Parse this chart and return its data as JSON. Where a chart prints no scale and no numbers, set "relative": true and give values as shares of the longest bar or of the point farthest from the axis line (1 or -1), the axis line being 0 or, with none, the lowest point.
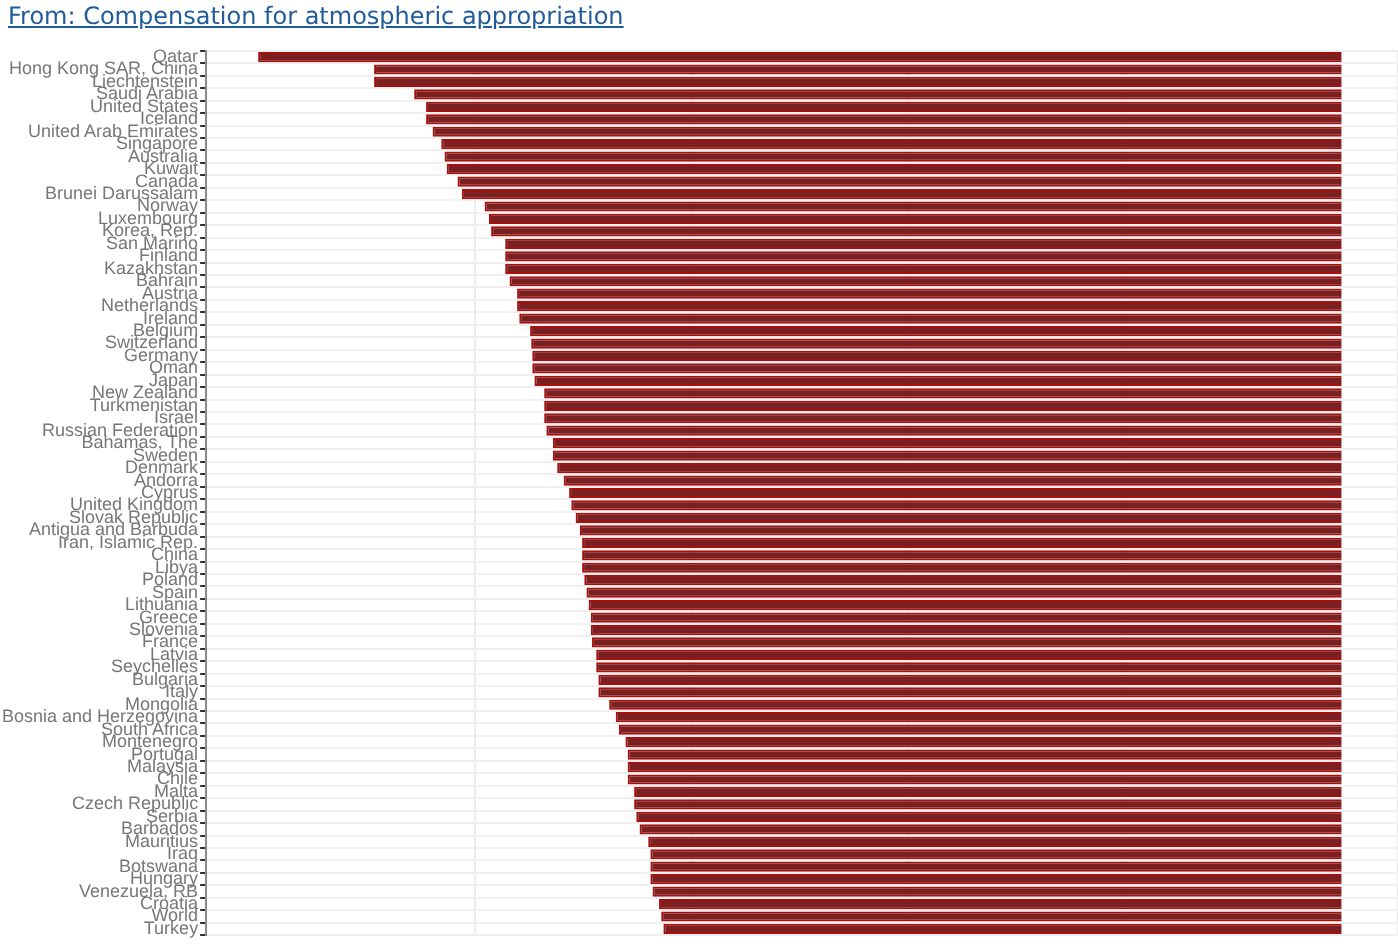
{
  "chart_data": {
    "type": "bar",
    "orientation": "horizontal",
    "relative": true,
    "title": "From: Compensation for atmospheric appropriation",
    "grid": true,
    "legend": false,
    "color": "#7a2020",
    "categories": [
      "Qatar",
      "Hong Kong SAR, China",
      "Liechtenstein",
      "Saudi Arabia",
      "United States",
      "Iceland",
      "United Arab Emirates",
      "Singapore",
      "Australia",
      "Kuwait",
      "Canada",
      "Brunei Darussalam",
      "Norway",
      "Luxembourg",
      "Korea, Rep.",
      "San Marino",
      "Finland",
      "Kazakhstan",
      "Bahrain",
      "Austria",
      "Netherlands",
      "Ireland",
      "Belgium",
      "Switzerland",
      "Germany",
      "Oman",
      "Japan",
      "New Zealand",
      "Turkmenistan",
      "Israel",
      "Russian Federation",
      "Bahamas, The",
      "Sweden",
      "Denmark",
      "Andorra",
      "Cyprus",
      "United Kingdom",
      "Slovak Republic",
      "Antigua and Barbuda",
      "Iran, Islamic Rep.",
      "China",
      "Libya",
      "Poland",
      "Spain",
      "Lithuania",
      "Greece",
      "Slovenia",
      "France",
      "Latvia",
      "Seychelles",
      "Bulgaria",
      "Italy",
      "Mongolia",
      "Bosnia and Herzegovina",
      "South Africa",
      "Montenegro",
      "Portugal",
      "Malaysia",
      "Chile",
      "Malta",
      "Czech Republic",
      "Serbia",
      "Barbados",
      "Mauritius",
      "Iraq",
      "Botswana",
      "Hungary",
      "Venezuela, RB",
      "Croatia",
      "World",
      "Turkey"
    ],
    "values": [
      -1,
      -0.893,
      -0.893,
      -0.856,
      -0.845,
      -0.845,
      -0.839,
      -0.831,
      -0.828,
      -0.826,
      -0.816,
      -0.812,
      -0.791,
      -0.787,
      -0.785,
      -0.772,
      -0.772,
      -0.772,
      -0.768,
      -0.761,
      -0.761,
      -0.759,
      -0.749,
      -0.748,
      -0.747,
      -0.747,
      -0.745,
      -0.736,
      -0.736,
      -0.736,
      -0.734,
      -0.728,
      -0.728,
      -0.724,
      -0.718,
      -0.713,
      -0.711,
      -0.707,
      -0.703,
      -0.701,
      -0.701,
      -0.701,
      -0.699,
      -0.697,
      -0.695,
      -0.693,
      -0.693,
      -0.692,
      -0.688,
      -0.688,
      -0.686,
      -0.686,
      -0.676,
      -0.67,
      -0.667,
      -0.661,
      -0.659,
      -0.659,
      -0.659,
      -0.653,
      -0.653,
      -0.651,
      -0.648,
      -0.64,
      -0.638,
      -0.638,
      -0.638,
      -0.636,
      -0.63,
      -0.628,
      -0.626
    ]
  }
}
